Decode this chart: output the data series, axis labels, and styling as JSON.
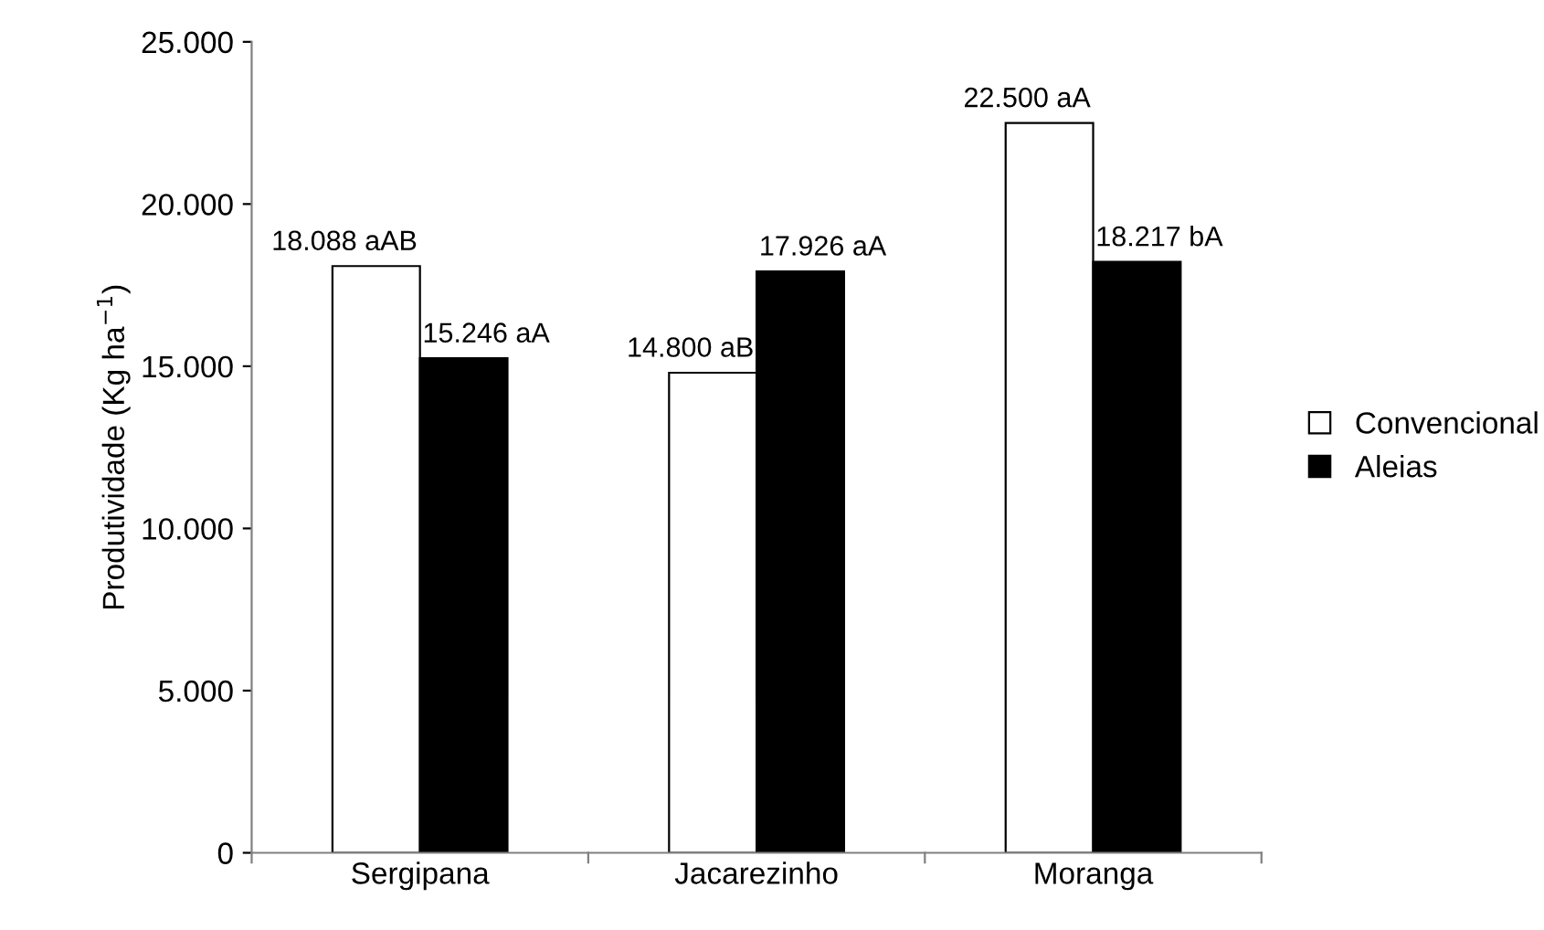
{
  "chart_data": {
    "type": "bar",
    "ylabel": "Produtividade (Kg ha$^{−1}$)",
    "categories": [
      "Sergipana",
      "Jacarezinho",
      "Moranga"
    ],
    "series": [
      {
        "name": "Convencional",
        "color": "#ffffff",
        "values": [
          18088,
          14800,
          22500
        ],
        "value_labels": [
          "18.088 aAB",
          "14.800 aB",
          "22.500 aA"
        ]
      },
      {
        "name": "Aleias",
        "color": "#000000",
        "values": [
          15246,
          17926,
          18217
        ],
        "value_labels": [
          "15.246 aA",
          "17.926 aA",
          "18.217 bA"
        ]
      }
    ],
    "ylim": [
      0,
      25000
    ],
    "yticks": [
      0,
      {
        "value": 5000,
        "label": "5.000"
      },
      {
        "value": 10000,
        "label": "10.000"
      },
      {
        "value": 15000,
        "label": "15.000"
      },
      {
        "value": 20000,
        "label": "20.000"
      },
      {
        "value": 25000,
        "label": "25.000"
      }
    ],
    "grid": false,
    "legend": "right"
  }
}
